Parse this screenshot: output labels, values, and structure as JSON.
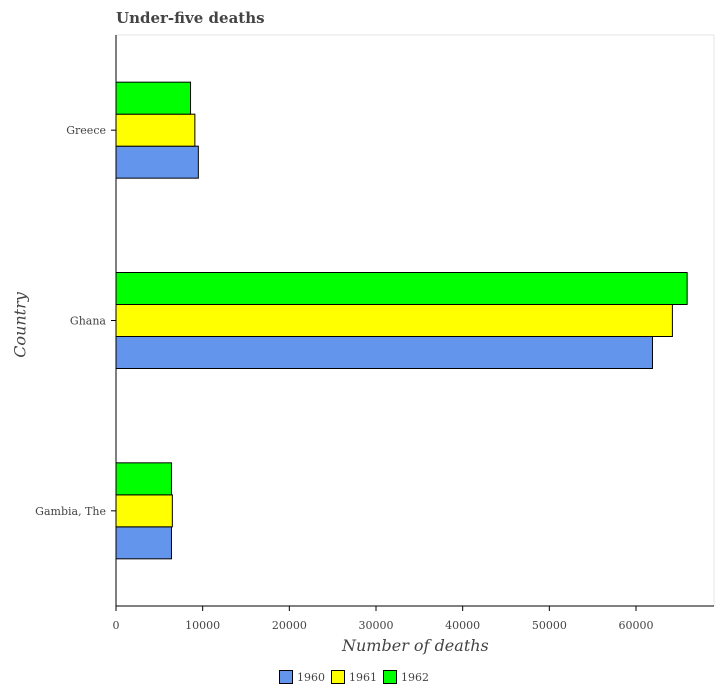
{
  "chart_data": {
    "type": "bar",
    "orientation": "horizontal",
    "title": "Under-five deaths",
    "xlabel": "Number of deaths",
    "ylabel": "Country",
    "categories": [
      "Gambia, The",
      "Ghana",
      "Greece"
    ],
    "series": [
      {
        "name": "1960",
        "color": "#6495ed",
        "values": [
          6400,
          61900,
          9500
        ]
      },
      {
        "name": "1961",
        "color": "#ffff00",
        "values": [
          6500,
          64200,
          9100
        ]
      },
      {
        "name": "1962",
        "color": "#00ff00",
        "values": [
          6400,
          65900,
          8600
        ]
      }
    ],
    "x_ticks": [
      0,
      10000,
      20000,
      30000,
      40000,
      50000,
      60000
    ],
    "xlim": [
      0,
      69000
    ],
    "legend_position": "bottom",
    "grid": false
  }
}
